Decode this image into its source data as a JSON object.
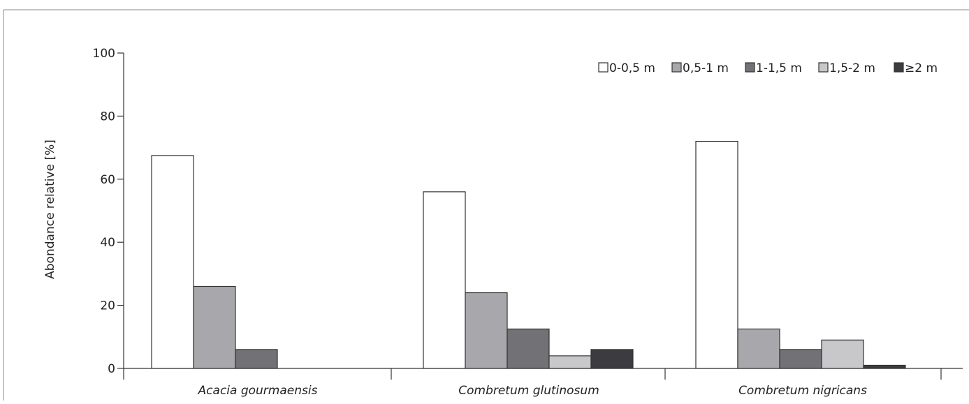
{
  "chart_data": {
    "type": "bar",
    "title": "",
    "xlabel": "",
    "ylabel": "Abondance relative [%]",
    "ylim": [
      0,
      100
    ],
    "yticks": [
      0,
      20,
      40,
      60,
      80,
      100
    ],
    "grid": false,
    "legend_position": "top-right",
    "categories": [
      "Acacia gourmaensis",
      "Combretum glutinosum",
      "Combretum nigricans"
    ],
    "series": [
      {
        "name": "0-0,5 m",
        "color": "#ffffff",
        "values": [
          67.5,
          56,
          72
        ]
      },
      {
        "name": "0,5-1 m",
        "color": "#a8a8ac",
        "values": [
          26,
          24,
          12.5
        ]
      },
      {
        "name": "1-1,5 m",
        "color": "#717176",
        "values": [
          6,
          12.5,
          6
        ]
      },
      {
        "name": "1,5-2 m",
        "color": "#c8c8cb",
        "values": [
          0,
          4,
          9
        ]
      },
      {
        "name": "≥2 m",
        "color": "#3c3c40",
        "values": [
          0,
          6,
          1
        ]
      }
    ]
  }
}
